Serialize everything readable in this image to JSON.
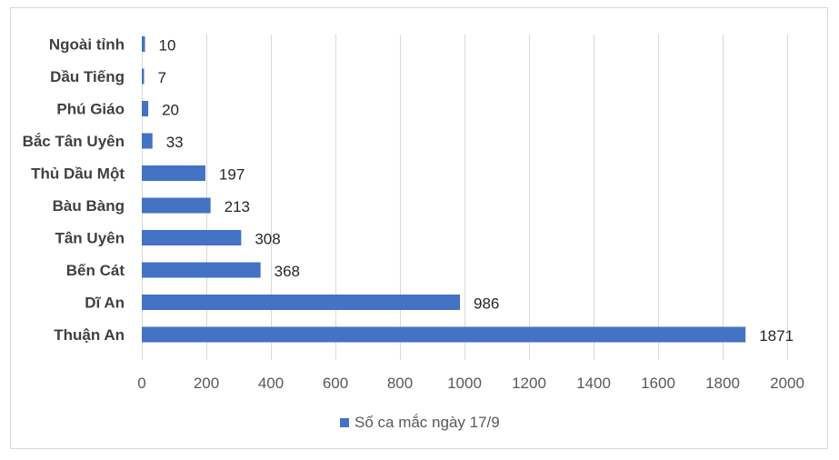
{
  "chart_data": {
    "type": "bar",
    "orientation": "horizontal",
    "categories": [
      "Ngoài tỉnh",
      "Dầu Tiếng",
      "Phú Giáo",
      "Bắc Tân Uyên",
      "Thủ Dầu Một",
      "Bàu Bàng",
      "Tân Uyên",
      "Bến Cát",
      "Dĩ An",
      "Thuận An"
    ],
    "series": [
      {
        "name": "Số ca mắc ngày 17/9",
        "values": [
          10,
          7,
          20,
          33,
          197,
          213,
          308,
          368,
          986,
          1871
        ],
        "color": "#4472c4"
      }
    ],
    "xlim": [
      0,
      2000
    ],
    "xticks": [
      0,
      200,
      400,
      600,
      800,
      1000,
      1200,
      1400,
      1600,
      1800,
      2000
    ],
    "grid": "vertical",
    "legend_position": "bottom",
    "data_labels": true
  }
}
